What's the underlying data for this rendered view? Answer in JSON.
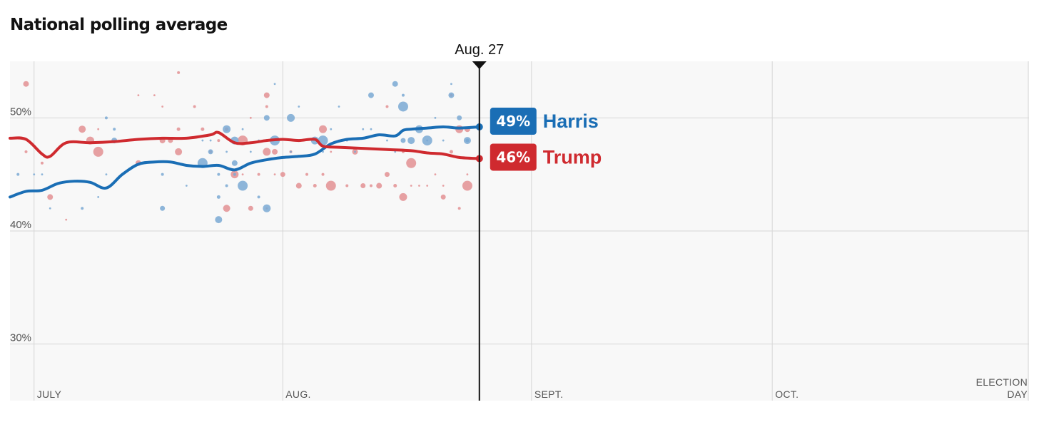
{
  "header": {
    "title": "National polling average"
  },
  "colors": {
    "harris": "#1a6eb5",
    "trump": "#cf2a2f",
    "harris_dot": "#7aa9d4",
    "trump_dot": "#e39093",
    "grid": "#d6d6d6",
    "plot_bg": "#f8f8f8"
  },
  "chart_data": {
    "type": "line",
    "title": "National polling average",
    "current_date_label": "Aug. 27",
    "current_day": 57.5,
    "x_domain": [
      -1,
      126
    ],
    "ylim": [
      25,
      55
    ],
    "y_ticks": [
      {
        "value": 50,
        "label": "50%"
      },
      {
        "value": 40,
        "label": "40%"
      },
      {
        "value": 30,
        "label": "30%"
      }
    ],
    "x_ticks": [
      {
        "day": 2,
        "label": "JULY"
      },
      {
        "day": 33,
        "label": "AUG."
      },
      {
        "day": 64,
        "label": "SEPT."
      },
      {
        "day": 94,
        "label": "OCT."
      },
      {
        "day": 126,
        "label": "ELECTION",
        "label2": "DAY"
      }
    ],
    "series": [
      {
        "name": "Harris",
        "end_label": "49%",
        "color": "#1a6eb5",
        "points": [
          [
            -1,
            43.0
          ],
          [
            1,
            43.5
          ],
          [
            3,
            43.6
          ],
          [
            5,
            44.2
          ],
          [
            7,
            44.4
          ],
          [
            9,
            44.3
          ],
          [
            11,
            43.8
          ],
          [
            13,
            45.0
          ],
          [
            15,
            45.9
          ],
          [
            17,
            46.1
          ],
          [
            19,
            46.1
          ],
          [
            21,
            45.8
          ],
          [
            23,
            45.7
          ],
          [
            25,
            45.8
          ],
          [
            27,
            45.4
          ],
          [
            29,
            46.0
          ],
          [
            31,
            46.3
          ],
          [
            33,
            46.5
          ],
          [
            35,
            46.6
          ],
          [
            37,
            46.8
          ],
          [
            39,
            47.7
          ],
          [
            41,
            48.1
          ],
          [
            43,
            48.2
          ],
          [
            45,
            48.5
          ],
          [
            47,
            48.4
          ],
          [
            48,
            48.9
          ],
          [
            49,
            49.0
          ],
          [
            51,
            49.1
          ],
          [
            53,
            49.2
          ],
          [
            55,
            49.1
          ],
          [
            57.5,
            49.2
          ]
        ]
      },
      {
        "name": "Trump",
        "end_label": "46%",
        "color": "#cf2a2f",
        "points": [
          [
            -1,
            48.2
          ],
          [
            1,
            48.1
          ],
          [
            3,
            46.8
          ],
          [
            4,
            46.6
          ],
          [
            6,
            47.8
          ],
          [
            9,
            47.8
          ],
          [
            12,
            47.9
          ],
          [
            15,
            48.1
          ],
          [
            18,
            48.2
          ],
          [
            21,
            48.2
          ],
          [
            24,
            48.5
          ],
          [
            25,
            48.7
          ],
          [
            27,
            47.8
          ],
          [
            29,
            47.8
          ],
          [
            31,
            48.0
          ],
          [
            33,
            48.1
          ],
          [
            35,
            48.0
          ],
          [
            37,
            48.1
          ],
          [
            38,
            47.5
          ],
          [
            40,
            47.4
          ],
          [
            43,
            47.3
          ],
          [
            46,
            47.2
          ],
          [
            49,
            47.1
          ],
          [
            51,
            46.9
          ],
          [
            53,
            46.8
          ],
          [
            55,
            46.5
          ],
          [
            57.5,
            46.4
          ]
        ]
      }
    ],
    "polls": {
      "harris": [
        [
          0,
          45
        ],
        [
          2,
          45
        ],
        [
          3,
          45
        ],
        [
          4,
          42
        ],
        [
          8,
          42
        ],
        [
          10,
          43
        ],
        [
          11,
          45
        ],
        [
          11,
          50
        ],
        [
          12,
          48
        ],
        [
          12,
          49
        ],
        [
          18,
          42
        ],
        [
          18,
          45
        ],
        [
          21,
          44
        ],
        [
          23,
          46
        ],
        [
          23,
          48
        ],
        [
          24,
          48
        ],
        [
          24,
          47
        ],
        [
          25,
          45
        ],
        [
          25,
          43
        ],
        [
          25,
          41
        ],
        [
          26,
          49
        ],
        [
          26,
          47
        ],
        [
          26,
          44
        ],
        [
          27,
          46
        ],
        [
          27,
          45
        ],
        [
          27,
          48
        ],
        [
          28,
          44
        ],
        [
          28,
          49
        ],
        [
          29,
          47
        ],
        [
          30,
          48
        ],
        [
          30,
          43
        ],
        [
          31,
          50
        ],
        [
          31,
          48
        ],
        [
          31,
          42
        ],
        [
          32,
          48
        ],
        [
          32,
          53
        ],
        [
          34,
          50
        ],
        [
          34,
          47
        ],
        [
          35,
          51
        ],
        [
          37,
          48
        ],
        [
          38,
          48
        ],
        [
          38,
          47
        ],
        [
          39,
          49
        ],
        [
          40,
          51
        ],
        [
          41,
          48
        ],
        [
          42,
          47
        ],
        [
          43,
          49
        ],
        [
          44,
          49
        ],
        [
          44,
          52
        ],
        [
          46,
          48
        ],
        [
          47,
          47
        ],
        [
          47,
          53
        ],
        [
          48,
          48
        ],
        [
          48,
          52
        ],
        [
          48,
          51
        ],
        [
          49,
          48
        ],
        [
          50,
          49
        ],
        [
          51,
          48
        ],
        [
          51,
          48
        ],
        [
          52,
          50
        ],
        [
          53,
          48
        ],
        [
          54,
          53
        ],
        [
          54,
          52
        ],
        [
          55,
          50
        ],
        [
          56,
          48
        ],
        [
          56,
          48
        ],
        [
          56,
          48
        ]
      ],
      "trump": [
        [
          -1,
          48
        ],
        [
          1,
          53
        ],
        [
          1,
          47
        ],
        [
          3,
          46
        ],
        [
          4,
          43
        ],
        [
          6,
          41
        ],
        [
          8,
          49
        ],
        [
          9,
          48
        ],
        [
          10,
          47
        ],
        [
          10,
          49
        ],
        [
          15,
          52
        ],
        [
          15,
          46
        ],
        [
          17,
          52
        ],
        [
          18,
          51
        ],
        [
          18,
          48
        ],
        [
          19,
          48
        ],
        [
          20,
          54
        ],
        [
          20,
          49
        ],
        [
          20,
          47
        ],
        [
          22,
          51
        ],
        [
          23,
          49
        ],
        [
          24,
          47
        ],
        [
          25,
          48
        ],
        [
          26,
          49
        ],
        [
          26,
          42
        ],
        [
          27,
          45
        ],
        [
          28,
          48
        ],
        [
          28,
          45
        ],
        [
          29,
          50
        ],
        [
          29,
          42
        ],
        [
          30,
          45
        ],
        [
          31,
          52
        ],
        [
          31,
          51
        ],
        [
          31,
          47
        ],
        [
          31,
          42
        ],
        [
          32,
          45
        ],
        [
          32,
          47
        ],
        [
          33,
          45
        ],
        [
          34,
          47
        ],
        [
          35,
          44
        ],
        [
          35,
          48
        ],
        [
          36,
          45
        ],
        [
          37,
          44
        ],
        [
          38,
          45
        ],
        [
          38,
          49
        ],
        [
          39,
          44
        ],
        [
          39,
          47
        ],
        [
          40,
          48
        ],
        [
          41,
          48
        ],
        [
          41,
          44
        ],
        [
          42,
          47
        ],
        [
          43,
          44
        ],
        [
          44,
          44
        ],
        [
          45,
          44
        ],
        [
          46,
          45
        ],
        [
          46,
          51
        ],
        [
          47,
          44
        ],
        [
          48,
          47
        ],
        [
          48,
          43
        ],
        [
          49,
          46
        ],
        [
          49,
          44
        ],
        [
          50,
          44
        ],
        [
          51,
          44
        ],
        [
          52,
          45
        ],
        [
          53,
          44
        ],
        [
          53,
          43
        ],
        [
          54,
          52
        ],
        [
          54,
          47
        ],
        [
          55,
          42
        ],
        [
          55,
          49
        ],
        [
          56,
          44
        ],
        [
          56,
          45
        ],
        [
          56,
          49
        ]
      ]
    }
  }
}
